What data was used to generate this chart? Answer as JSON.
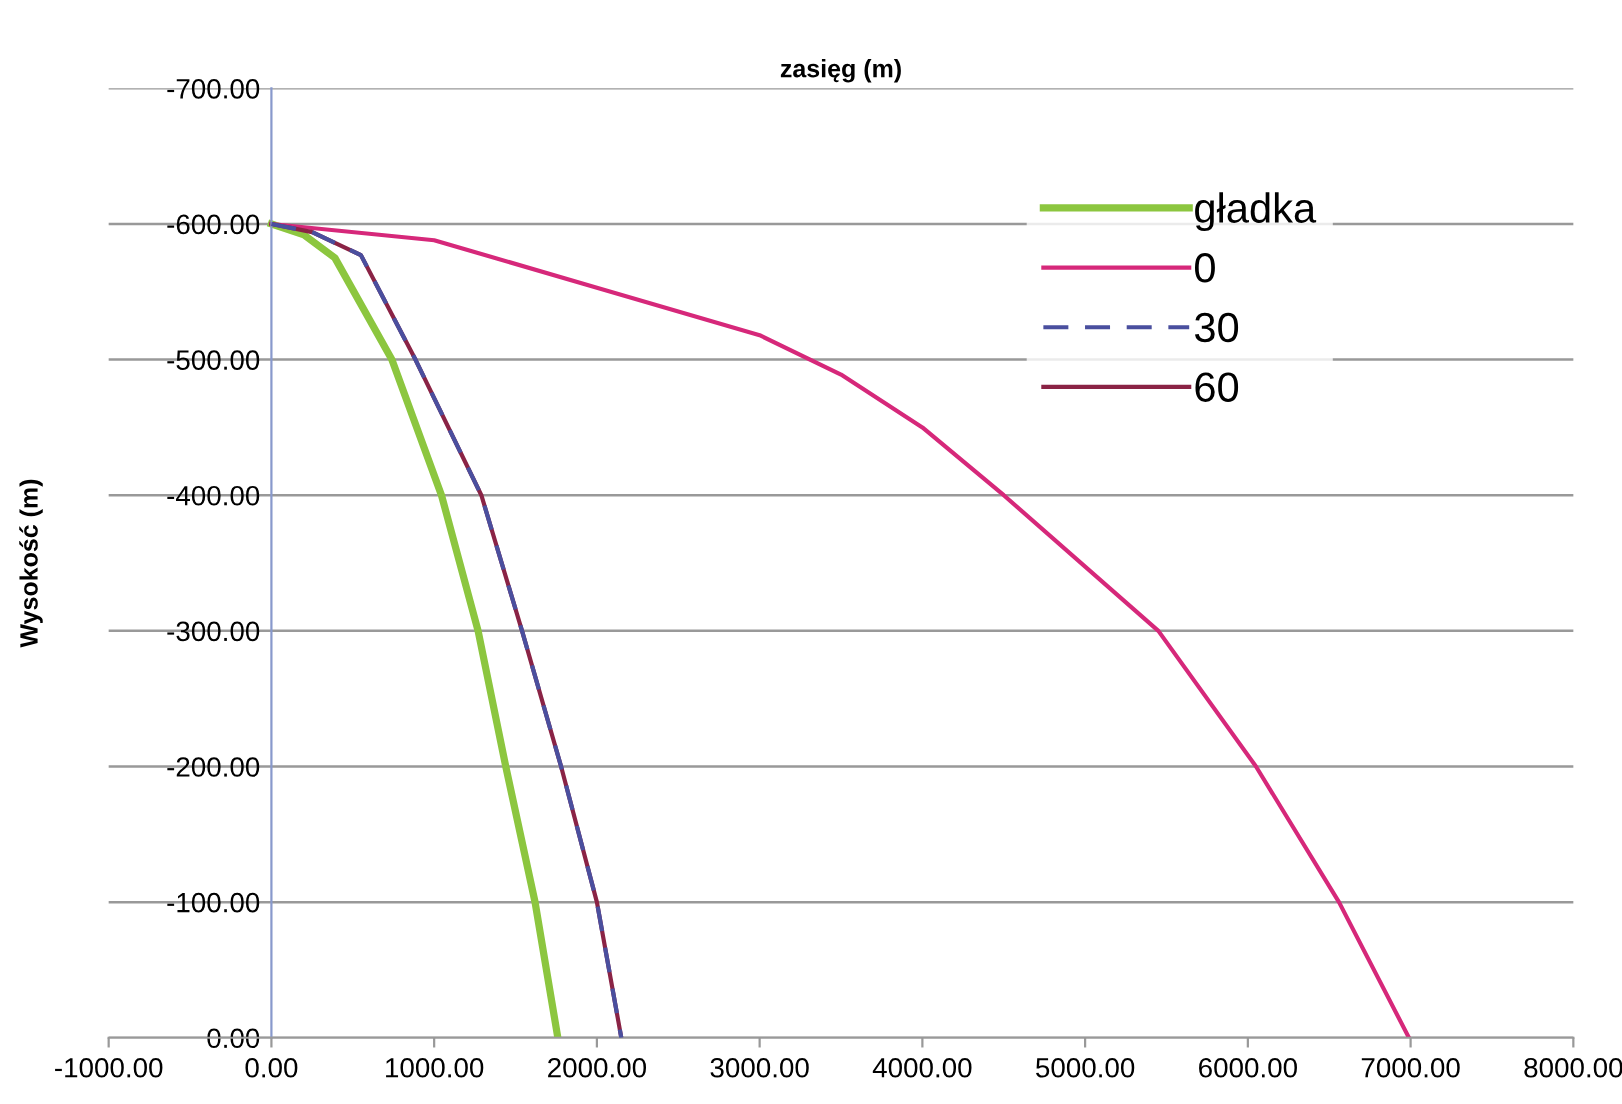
{
  "chart_data": {
    "type": "line",
    "xlabel": "zasięg (m)",
    "ylabel": "Wysokość (m)",
    "series": [
      {
        "name": "gładka",
        "color": "#8cc63f",
        "line_style": "solid",
        "x": [
          0,
          200,
          390,
          740,
          1045,
          1270,
          1440,
          1620,
          1760
        ],
        "values": [
          -600,
          -592,
          -575,
          -500,
          -400,
          -300,
          -200,
          -100,
          0
        ]
      },
      {
        "name": "0",
        "color": "#d6287a",
        "line_style": "solid",
        "x": [
          0,
          1000,
          2000,
          3000,
          3500,
          4000,
          4500,
          5450,
          6050,
          6560,
          6990
        ],
        "values": [
          -600,
          -588,
          -553,
          -518,
          -489,
          -450,
          -400,
          -300,
          -200,
          -100,
          0
        ]
      },
      {
        "name": "30",
        "color": "#4a4f9e",
        "line_style": "dashed",
        "x": [
          0,
          250,
          550,
          885,
          1290,
          1540,
          1780,
          2000,
          2150
        ],
        "values": [
          -600,
          -594,
          -577,
          -500,
          -400,
          -300,
          -200,
          -100,
          0
        ]
      },
      {
        "name": "60",
        "color": "#8a2345",
        "line_style": "solid",
        "x": [
          0,
          250,
          550,
          885,
          1290,
          1540,
          1780,
          2000,
          2150
        ],
        "values": [
          -600,
          -594,
          -577,
          -500,
          -400,
          -300,
          -200,
          -100,
          0
        ]
      }
    ],
    "xlim": [
      -1000,
      8000
    ],
    "xticks": [
      {
        "value": -1000,
        "label": "-1000.00"
      },
      {
        "value": 0,
        "label": "0.00"
      },
      {
        "value": 1000,
        "label": "1000.00"
      },
      {
        "value": 2000,
        "label": "2000.00"
      },
      {
        "value": 3000,
        "label": "3000.00"
      },
      {
        "value": 4000,
        "label": "4000.00"
      },
      {
        "value": 5000,
        "label": "5000.00"
      },
      {
        "value": 6000,
        "label": "6000.00"
      },
      {
        "value": 7000,
        "label": "7000.00"
      },
      {
        "value": 8000,
        "label": "8000.00"
      }
    ],
    "ylim": [
      0,
      -700
    ],
    "yticks": [
      {
        "value": -700,
        "label": "-700.00"
      },
      {
        "value": -600,
        "label": "-600.00"
      },
      {
        "value": -500,
        "label": "-500.00"
      },
      {
        "value": -400,
        "label": "-400.00"
      },
      {
        "value": -300,
        "label": "-300.00"
      },
      {
        "value": -200,
        "label": "-200.00"
      },
      {
        "value": -100,
        "label": "-100.00"
      },
      {
        "value": 0,
        "label": "0.00"
      }
    ],
    "grid": "y",
    "legend": "top right",
    "marker": "none"
  }
}
